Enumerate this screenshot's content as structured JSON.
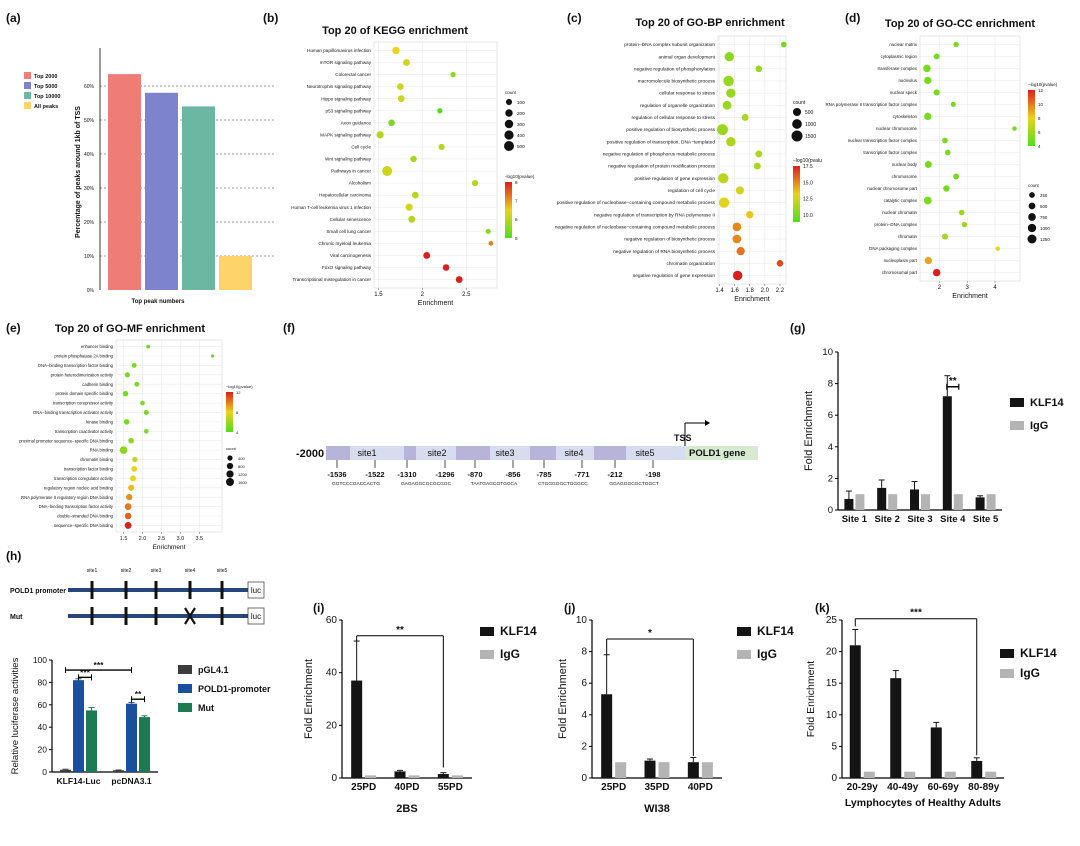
{
  "colors": {
    "top2000": "#f07c78",
    "top5000": "#7d83cc",
    "top10000": "#6bb7a2",
    "allpeaks": "#fdd36a",
    "klf14": "#141414",
    "igg": "#b4b4b4",
    "pgl": "#3c3c3c",
    "pold1": "#1a4f9e",
    "mut": "#1d7a52",
    "site_box": "#b8b3d9",
    "gene_box": "#d5ead1",
    "promoter_line": "#27467a"
  },
  "panels": {
    "a": {
      "label": "(a)"
    },
    "b": {
      "label": "(b)"
    },
    "c": {
      "label": "(c)"
    },
    "d": {
      "label": "(d)"
    },
    "e": {
      "label": "(e)"
    },
    "f": {
      "label": "(f)"
    },
    "g": {
      "label": "(g)"
    },
    "h": {
      "label": "(h)"
    },
    "i": {
      "label": "(i)"
    },
    "j": {
      "label": "(j)"
    },
    "k": {
      "label": "(k)"
    }
  },
  "chart_data": [
    {
      "id": "a",
      "type": "bar",
      "title": "",
      "ylabel": "Percentage of peaks around 1kb of TSS",
      "xlabel": "Top peak numbers",
      "ylim": [
        0,
        70
      ],
      "yticks": [
        0,
        10,
        20,
        30,
        40,
        50,
        60
      ],
      "ytick_labels": [
        "0%",
        "10%",
        "20%",
        "30%",
        "40%",
        "50%",
        "60%"
      ],
      "grid": "horizontal dotted",
      "legend": [
        "Top 2000",
        "Top 5000",
        "Top 10000",
        "All peaks"
      ],
      "categories": [
        "Top 2000",
        "Top 5000",
        "Top 10000",
        "All peaks"
      ],
      "values": [
        63.5,
        58,
        54,
        10
      ]
    },
    {
      "id": "b",
      "type": "scatter",
      "title": "Top 20 of KEGG enrichment",
      "xlabel": "Enrichment",
      "xlim": [
        1.45,
        2.85
      ],
      "xticks": [
        1.5,
        2,
        2.5
      ],
      "terms": [
        "Human papillomavirus infection",
        "mTOR signaling pathway",
        "Colorectal cancer",
        "Neurotrophin signaling pathway",
        "Hippo signaling pathway",
        "p53 signaling pathway",
        "Axon guidance",
        "MAPK signaling pathway",
        "Cell cycle",
        "Wnt signaling pathway",
        "Pathways in cancer",
        "Alcoholism",
        "Hepatocellular carcinoma",
        "Human T-cell leukemia virus 1 infection",
        "Cellular senescence",
        "Small cell lung cancer",
        "Chronic myeloid leukemia",
        "Viral carcinogenesis",
        "FoxO signaling pathway",
        "Transcriptional misregulation in cancer"
      ],
      "enrichment": [
        1.7,
        1.82,
        2.35,
        1.75,
        1.76,
        2.2,
        1.65,
        1.52,
        2.22,
        1.9,
        1.6,
        2.6,
        1.92,
        1.85,
        1.88,
        2.75,
        2.78,
        2.05,
        2.27,
        2.42
      ],
      "count": [
        200,
        150,
        60,
        140,
        150,
        50,
        130,
        180,
        100,
        120,
        500,
        110,
        140,
        180,
        160,
        40,
        30,
        150,
        130,
        150
      ],
      "neglog10p": [
        6.5,
        6.2,
        5.6,
        6.2,
        6.2,
        5.0,
        5.4,
        6.0,
        6.0,
        5.8,
        6.2,
        6.0,
        6.0,
        6.3,
        6.0,
        5.5,
        7.2,
        8.0,
        8.0,
        8.0
      ],
      "size_legend_title": "count",
      "size_legend": [
        100,
        200,
        300,
        400,
        500
      ],
      "color_legend_title": "-log10(pvalue)",
      "color_range": [
        5,
        8
      ],
      "color_ticks": [
        5,
        6,
        7,
        8
      ]
    },
    {
      "id": "c",
      "type": "scatter",
      "title": "Top 20 of GO-BP enrichment",
      "xlabel": "Enrichment",
      "xlim": [
        1.38,
        2.28
      ],
      "xticks": [
        1.4,
        1.6,
        1.8,
        2.0,
        2.2
      ],
      "xtick_labels": [
        "1.4",
        "1.6",
        "1.8",
        "2.0",
        "2.2"
      ],
      "terms": [
        "protein−DNA complex subunit organization",
        "animal organ development",
        "negative regulation of phosphorylation",
        "macromolecule biosynthetic process",
        "cellular response to stress",
        "regulation of organelle organization",
        "regulation of cellular response to stress",
        "positive regulation of biosynthetic process",
        "positive regulation of transcription, DNA−templated",
        "negative regulation of phosphorus metabolic process",
        "negative regulation of protein modification process",
        "positive regulation of gene expression",
        "regulation of cell cycle",
        "positive regulation of nucleobase−containing compound metabolic process",
        "negative regulation of transcription by RNA polymerase II",
        "negative regulation of nucleobase−containing compound metabolic process",
        "negative regulation of biosynthetic process",
        "negative regulation of RNA biosynthetic process",
        "chromatin organization",
        "negative regulation of gene expression"
      ],
      "enrichment": [
        2.25,
        1.53,
        1.92,
        1.52,
        1.55,
        1.5,
        1.74,
        1.44,
        1.55,
        1.92,
        1.9,
        1.45,
        1.67,
        1.46,
        1.8,
        1.63,
        1.63,
        1.68,
        2.2,
        1.64
      ],
      "count": [
        100,
        900,
        200,
        1300,
        850,
        700,
        250,
        1500,
        900,
        250,
        250,
        1200,
        500,
        1250,
        350,
        700,
        700,
        550,
        200,
        900
      ],
      "neglog10p": [
        10,
        10.5,
        11,
        11,
        11,
        11,
        11.5,
        11,
        11.5,
        11.5,
        11.5,
        12,
        12.5,
        13,
        13.5,
        15,
        15,
        15.5,
        16.5,
        17.5
      ],
      "size_legend_title": "count",
      "size_legend": [
        500,
        1000,
        1500
      ],
      "color_legend_title": "−log10(pvalu",
      "color_range": [
        9,
        17.5
      ],
      "color_ticks": [
        10.0,
        12.5,
        15.0,
        17.5
      ],
      "color_tick_labels": [
        "10.0",
        "12.5",
        "15.0",
        "17.5"
      ]
    },
    {
      "id": "d",
      "type": "scatter",
      "title": "Top 20 of GO-CC enrichment",
      "xlabel": "Enrichment",
      "xlim": [
        1.3,
        4.9
      ],
      "xticks": [
        2,
        3,
        4
      ],
      "terms": [
        "nuclear matrix",
        "cytoplasmic region",
        "transferase complex",
        "nucleolus",
        "nuclear speck",
        "RNA polymerase II transcription factor complex",
        "cytoskeleton",
        "nuclear chromosome",
        "nuclear transcription factor complex",
        "transcription factor complex",
        "nuclear body",
        "chromosome",
        "nuclear chromosome part",
        "catalytic complex",
        "nuclear chromatin",
        "protein−DNA complex",
        "chromatin",
        "DNA packaging complex",
        "nucleoplasm part",
        "chromosomal part"
      ],
      "enrichment": [
        2.6,
        1.9,
        1.55,
        1.58,
        1.9,
        2.5,
        1.58,
        4.7,
        2.2,
        2.3,
        1.6,
        2.6,
        2.25,
        1.58,
        2.8,
        2.9,
        2.2,
        4.1,
        1.6,
        1.9
      ],
      "count": [
        200,
        300,
        700,
        650,
        350,
        150,
        650,
        80,
        250,
        250,
        550,
        300,
        400,
        800,
        250,
        200,
        300,
        80,
        650,
        700
      ],
      "neglog10p": [
        5,
        5,
        5,
        5,
        5,
        5,
        5,
        5,
        5,
        5,
        5,
        5,
        5,
        5,
        6,
        6,
        6,
        8,
        9,
        12
      ],
      "size_legend_title": "count",
      "size_legend": [
        250,
        500,
        750,
        1000,
        1250
      ],
      "color_legend_title": "−log10(pvalue)",
      "color_range": [
        4,
        12
      ],
      "color_ticks": [
        4,
        6,
        8,
        10,
        12
      ]
    },
    {
      "id": "e",
      "type": "scatter",
      "title": "Top 20 of GO-MF enrichment",
      "xlabel": "Enrichment",
      "xlim": [
        1.3,
        4.1
      ],
      "xticks": [
        1.5,
        2.0,
        2.5,
        3.0,
        3.5
      ],
      "xtick_labels": [
        "1.5",
        "2.0",
        "2.5",
        "3.0",
        "3.5"
      ],
      "terms": [
        "enhancer binding",
        "protein phosphatase 2A binding",
        "DNA−binding transcription factor binding",
        "protein heterodimerization activity",
        "cadherin binding",
        "protein domain specific binding",
        "transcription corepressor activity",
        "DNA−binding transcription activator activity",
        "kinase binding",
        "transcription coactivator activity",
        "proximal promoter sequence−specific DNA binding",
        "RNA binding",
        "chromatin binding",
        "transcription factor binding",
        "transcription coregulator activity",
        "regulatory region nucleic acid binding",
        "RNA polymerase II regulatory region DNA binding",
        "DNA−binding transcription factor activity",
        "double−stranded DNA binding",
        "sequence−specific DNA binding"
      ],
      "enrichment": [
        2.15,
        3.85,
        1.78,
        1.6,
        1.85,
        1.55,
        2.0,
        2.1,
        1.58,
        2.1,
        1.7,
        1.5,
        1.8,
        1.78,
        1.75,
        1.7,
        1.65,
        1.62,
        1.62,
        1.62
      ],
      "count": [
        100,
        30,
        300,
        400,
        300,
        500,
        250,
        350,
        500,
        250,
        500,
        1400,
        450,
        600,
        650,
        700,
        800,
        950,
        900,
        1000
      ],
      "neglog10p": [
        5,
        4.5,
        5,
        5,
        5,
        5,
        5,
        5,
        5,
        5,
        5.5,
        5.5,
        7,
        8,
        8,
        8.5,
        9.5,
        10,
        10.5,
        12
      ],
      "size_legend_title": "count",
      "size_legend": [
        400,
        800,
        1200,
        1600
      ],
      "color_legend_title": "−log10(pvalue)",
      "color_range": [
        4,
        12
      ],
      "color_ticks": [
        4,
        8,
        12
      ]
    },
    {
      "id": "g",
      "type": "bar",
      "title": "",
      "ylabel": "Fold Enrichment",
      "xlabel": "",
      "ylim": [
        0,
        10
      ],
      "yticks": [
        0,
        2,
        4,
        6,
        8,
        10
      ],
      "categories": [
        "Site 1",
        "Site 2",
        "Site 3",
        "Site 4",
        "Site 5"
      ],
      "series": [
        {
          "name": "KLF14",
          "values": [
            0.7,
            1.4,
            1.3,
            7.2,
            0.8
          ],
          "errors": [
            0.5,
            0.5,
            0.5,
            1.3,
            0.1
          ]
        },
        {
          "name": "IgG",
          "values": [
            1,
            1,
            1,
            1,
            1
          ],
          "errors": [
            0,
            0,
            0,
            0,
            0
          ]
        }
      ],
      "annotations": [
        {
          "text": "**",
          "category": "Site 4"
        }
      ]
    },
    {
      "id": "h",
      "type": "bar",
      "title": "",
      "ylabel": "Relative luciferase activities",
      "xlabel": "",
      "ylim": [
        0,
        100
      ],
      "yticks": [
        0,
        20,
        40,
        60,
        80,
        100
      ],
      "categories": [
        "KLF14-Luc",
        "pcDNA3.1"
      ],
      "series": [
        {
          "name": "pGL4.1",
          "values": [
            2,
            1.5
          ],
          "errors": [
            0.5,
            0.3
          ]
        },
        {
          "name": "POLD1-promoter",
          "values": [
            82,
            61
          ],
          "errors": [
            1.2,
            1.0
          ]
        },
        {
          "name": "Mut",
          "values": [
            55,
            49
          ],
          "errors": [
            2.5,
            1.2
          ]
        }
      ],
      "annotations": [
        "***",
        "***",
        "**"
      ]
    },
    {
      "id": "i",
      "type": "bar",
      "title": "",
      "ylabel": "Fold Enrichment",
      "xlabel": "2BS",
      "ylim": [
        0,
        60
      ],
      "yticks": [
        0,
        20,
        40,
        60
      ],
      "categories": [
        "25PD",
        "40PD",
        "55PD"
      ],
      "series": [
        {
          "name": "KLF14",
          "values": [
            37,
            2.5,
            1.5
          ],
          "errors": [
            15,
            0.4,
            0.5
          ]
        },
        {
          "name": "IgG",
          "values": [
            1,
            1,
            1
          ],
          "errors": [
            0,
            0,
            0
          ]
        }
      ],
      "annotations": [
        "**"
      ]
    },
    {
      "id": "j",
      "type": "bar",
      "title": "",
      "ylabel": "Fold Enrichment",
      "xlabel": "WI38",
      "ylim": [
        0,
        10
      ],
      "yticks": [
        0,
        2,
        4,
        6,
        8,
        10
      ],
      "categories": [
        "25PD",
        "35PD",
        "40PD"
      ],
      "series": [
        {
          "name": "KLF14",
          "values": [
            5.3,
            1.1,
            1.0
          ],
          "errors": [
            2.5,
            0.1,
            0.3
          ]
        },
        {
          "name": "IgG",
          "values": [
            1,
            1,
            1
          ],
          "errors": [
            0,
            0,
            0
          ]
        }
      ],
      "annotations": [
        "*"
      ]
    },
    {
      "id": "k",
      "type": "bar",
      "title": "",
      "ylabel": "Fold Enrichment",
      "xlabel": "Lymphocytes of Healthy Adults",
      "ylim": [
        0,
        25
      ],
      "yticks": [
        0,
        5,
        10,
        15,
        20,
        25
      ],
      "categories": [
        "20-29y",
        "40-49y",
        "60-69y",
        "80-89y"
      ],
      "series": [
        {
          "name": "KLF14",
          "values": [
            21,
            15.8,
            8,
            2.7
          ],
          "errors": [
            2.5,
            1.2,
            0.8,
            0.5
          ]
        },
        {
          "name": "IgG",
          "values": [
            1,
            1,
            1,
            1
          ],
          "errors": [
            0,
            0,
            0,
            0
          ]
        }
      ],
      "annotations": [
        "***"
      ]
    }
  ],
  "promoter": {
    "start_label": "-2000",
    "tss_label": "TSS",
    "gene_label": "POLD1 gene",
    "sites": [
      {
        "name": "site1",
        "left": "-1536",
        "right": "-1522",
        "seq": "GGTCCCGACCACTG"
      },
      {
        "name": "site2",
        "left": "-1310",
        "right": "-1296",
        "seq": "GAGAGGCGCGCGGC"
      },
      {
        "name": "site3",
        "left": "-870",
        "right": "-856",
        "seq": "TAATGAGCGTGGCA"
      },
      {
        "name": "site4",
        "left": "-785",
        "right": "-771",
        "seq": "CTGGGGGCTGGGCC"
      },
      {
        "name": "site5",
        "left": "-212",
        "right": "-198",
        "seq": "GGAGGGCGCTGGCT"
      }
    ]
  },
  "luciferase": {
    "rows": [
      {
        "label": "POLD1 promoter",
        "luc": "luc",
        "mutated": false
      },
      {
        "label": "Mut",
        "luc": "luc",
        "mutated": true
      }
    ],
    "site_labels": [
      "site1",
      "site2",
      "site3",
      "site4",
      "site5"
    ]
  }
}
